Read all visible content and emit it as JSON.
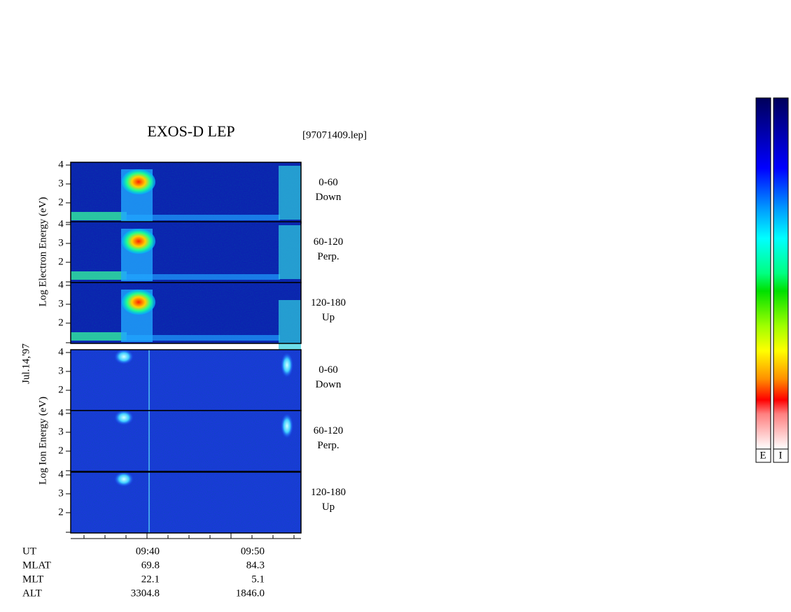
{
  "title": "EXOS-D LEP",
  "file": "[97071409.lep]",
  "date": "Jul.14,'97",
  "electron_axis_label": "Log Electron Energy (eV)",
  "ion_axis_label": "Log Ion Energy (eV)",
  "y_tick_labels": [
    "4",
    "3",
    "2"
  ],
  "panels": [
    {
      "angle": "0-60",
      "direction": "Down"
    },
    {
      "angle": "60-120",
      "direction": "Perp."
    },
    {
      "angle": "120-180",
      "direction": "Up"
    },
    {
      "angle": "0-60",
      "direction": "Down"
    },
    {
      "angle": "60-120",
      "direction": "Perp."
    },
    {
      "angle": "120-180",
      "direction": "Up"
    }
  ],
  "ephemeris": [
    {
      "name": "UT",
      "values": [
        "09:40",
        "09:50"
      ]
    },
    {
      "name": "MLAT",
      "values": [
        "69.8",
        "84.3"
      ]
    },
    {
      "name": "MLT",
      "values": [
        "22.1",
        "5.1"
      ]
    },
    {
      "name": "ALT",
      "values": [
        "3304.8",
        "1846.0"
      ]
    }
  ],
  "colorbar_labels": [
    "E",
    "I"
  ]
}
